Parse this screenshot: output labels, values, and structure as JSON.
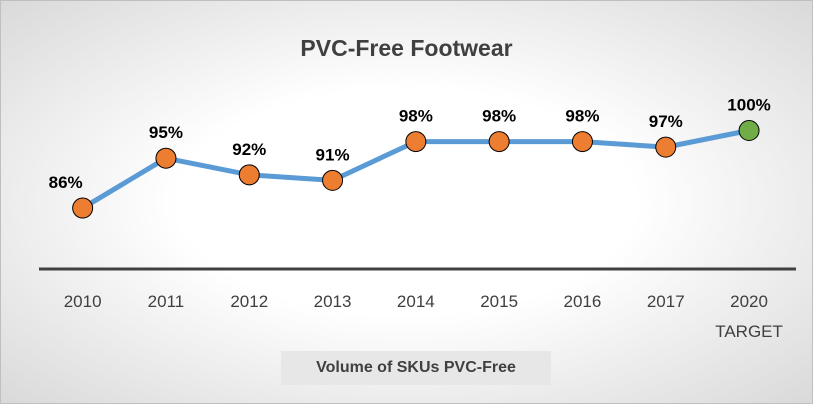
{
  "chart_data": {
    "type": "line",
    "title": "PVC-Free Footwear",
    "x_label": "Volume of SKUs PVC-Free",
    "categories": [
      "2010",
      "2011",
      "2012",
      "2013",
      "2014",
      "2015",
      "2016",
      "2017",
      "2020\nTARGET"
    ],
    "series": [
      {
        "name": "PVC-Free",
        "color": "#5b9bd5",
        "marker_colors": [
          "#ed7d31",
          "#ed7d31",
          "#ed7d31",
          "#ed7d31",
          "#ed7d31",
          "#ed7d31",
          "#ed7d31",
          "#ed7d31",
          "#70ad47"
        ],
        "values": [
          86,
          95,
          92,
          91,
          98,
          98,
          98,
          97,
          100
        ],
        "value_labels": [
          "86%",
          "95%",
          "92%",
          "91%",
          "98%",
          "98%",
          "98%",
          "97%",
          "100%"
        ]
      }
    ],
    "ylim": [
      75,
      100
    ],
    "grid": false
  }
}
